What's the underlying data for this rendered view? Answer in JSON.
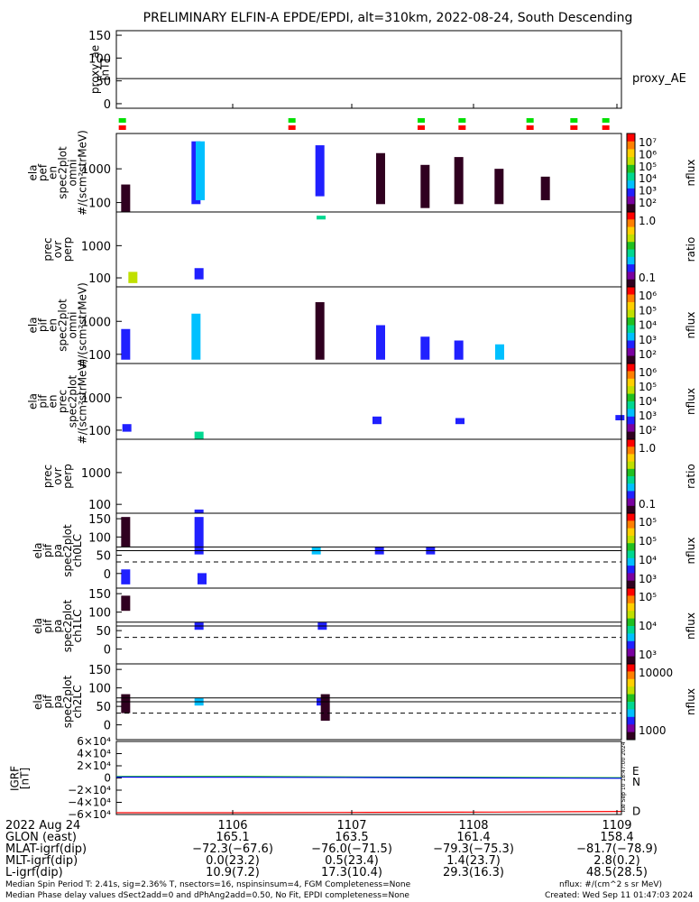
{
  "title": "PRELIMINARY ELFIN-A EPDE/EPDI, alt=310km, 2022-08-24, South Descending",
  "colors": {
    "cbar_sub": [
      "#7a00a0",
      "#2020ff",
      "#00c0ff",
      "#00d890",
      "#20c020",
      "#c0e000",
      "#ffd000",
      "#ff8000",
      "#ff0000"
    ]
  },
  "chart_data": {
    "type": "heatmap",
    "time_axis": {
      "ticks": [
        "1106",
        "1107",
        "1108",
        "1109"
      ]
    },
    "ae_panel": {
      "ylabel": [
        "proxy_ae",
        "[nT]"
      ],
      "yticks": [
        "150",
        "100",
        "50",
        "0"
      ],
      "ylim": [
        -10,
        160
      ],
      "value": 55,
      "legend": "proxy_AE"
    },
    "spin_markers": {
      "green_columns": [
        0.4,
        28.6,
        50.1,
        56.9,
        68.2,
        75.5,
        80.8
      ],
      "red_columns": [
        0.4,
        28.6,
        50.1,
        56.9,
        68.2,
        75.5,
        80.8
      ]
    },
    "panels": [
      {
        "ylabel": [
          "ela",
          "pef",
          "en",
          "spec2plot",
          "omni",
          "#/(scm²strMeV)"
        ],
        "yticks": [
          "1000",
          "100"
        ],
        "colorbar": {
          "labels": [
            "10⁷",
            "10⁶",
            "10⁵",
            "10⁴",
            "10³",
            "10²"
          ],
          "unit": "nflux"
        },
        "blocks": [
          {
            "t": 0.8,
            "e": [
              0.0,
              0.35
            ],
            "c": 0
          },
          {
            "t": 12.5,
            "e": [
              0.1,
              0.9
            ],
            "c": 1
          },
          {
            "t": 13.2,
            "e": [
              0.15,
              0.9
            ],
            "c": 2
          },
          {
            "t": 33.1,
            "e": [
              0.2,
              0.85
            ],
            "c": 1
          },
          {
            "t": 43.2,
            "e": [
              0.1,
              0.75
            ],
            "c": 0
          },
          {
            "t": 50.6,
            "e": [
              0.05,
              0.6
            ],
            "c": 0
          },
          {
            "t": 56.2,
            "e": [
              0.1,
              0.7
            ],
            "c": 0
          },
          {
            "t": 62.9,
            "e": [
              0.1,
              0.55
            ],
            "c": 0
          },
          {
            "t": 70.6,
            "e": [
              0.15,
              0.45
            ],
            "c": 0
          }
        ]
      },
      {
        "ylabel": [
          "prec",
          "ovr",
          "perp"
        ],
        "yticks": [
          "1000",
          "100"
        ],
        "colorbar": {
          "labels": [
            "1.0",
            "0.1"
          ],
          "unit": "ratio"
        },
        "blocks": [
          {
            "t": 2.0,
            "e": [
              0.05,
              0.2
            ],
            "c": 5
          },
          {
            "t": 13.0,
            "e": [
              0.1,
              0.25
            ],
            "c": 1
          },
          {
            "t": 33.3,
            "e": [
              0.9,
              0.95
            ],
            "c": 3
          }
        ]
      },
      {
        "ylabel": [
          "ela",
          "pif",
          "en",
          "spec2plot",
          "omni",
          "#/(scm²strMeV)"
        ],
        "yticks": [
          "1000",
          "100"
        ],
        "colorbar": {
          "labels": [
            "10⁶",
            "10⁵",
            "10⁴",
            "10³",
            "10²"
          ],
          "unit": "nflux"
        },
        "blocks": [
          {
            "t": 0.8,
            "e": [
              0.05,
              0.45
            ],
            "c": 1
          },
          {
            "t": 12.5,
            "e": [
              0.05,
              0.65
            ],
            "c": 2
          },
          {
            "t": 33.1,
            "e": [
              0.05,
              0.8
            ],
            "c": 0
          },
          {
            "t": 43.2,
            "e": [
              0.05,
              0.5
            ],
            "c": 1
          },
          {
            "t": 50.6,
            "e": [
              0.05,
              0.35
            ],
            "c": 1
          },
          {
            "t": 56.2,
            "e": [
              0.05,
              0.3
            ],
            "c": 1
          },
          {
            "t": 63.0,
            "e": [
              0.05,
              0.25
            ],
            "c": 2
          }
        ]
      },
      {
        "ylabel": [
          "ela",
          "pif",
          "en",
          "prec",
          "spec2plot",
          "#/(scm²strMeV)"
        ],
        "yticks": [
          "1000",
          "100"
        ],
        "colorbar": {
          "labels": [
            "10⁶",
            "10⁵",
            "10⁴",
            "10³",
            "10²"
          ],
          "unit": "nflux"
        },
        "blocks": [
          {
            "t": 1.0,
            "e": [
              0.1,
              0.2
            ],
            "c": 1
          },
          {
            "t": 13.0,
            "e": [
              0.0,
              0.1
            ],
            "c": 3
          },
          {
            "t": 42.6,
            "e": [
              0.2,
              0.3
            ],
            "c": 1
          },
          {
            "t": 56.4,
            "e": [
              0.2,
              0.28
            ],
            "c": 1
          },
          {
            "t": 83.0,
            "e": [
              0.25,
              0.32
            ],
            "c": 1
          }
        ]
      },
      {
        "ylabel": [
          "prec",
          "ovr",
          "perp"
        ],
        "yticks": [
          "1000",
          "100"
        ],
        "colorbar": {
          "labels": [
            "1.0",
            "0.1"
          ],
          "unit": "ratio"
        },
        "blocks": [
          {
            "t": 13.0,
            "e": [
              0.0,
              0.05
            ],
            "c": 1
          }
        ]
      },
      {
        "ylabel": [
          "ela",
          "pif",
          "pa",
          "spec2plot",
          "ch0LC"
        ],
        "yticks": [
          "150",
          "100",
          "50",
          "0"
        ],
        "colorbar": {
          "labels": [
            "10⁵",
            "10⁵",
            "10⁴",
            "10³"
          ],
          "unit": "nflux"
        },
        "blocks": [
          {
            "t": 0.8,
            "e": [
              0.55,
              0.95
            ],
            "c": 0
          },
          {
            "t": 0.8,
            "e": [
              0.05,
              0.25
            ],
            "c": 1
          },
          {
            "t": 13.0,
            "e": [
              0.45,
              0.95
            ],
            "c": 1
          },
          {
            "t": 13.5,
            "e": [
              0.05,
              0.2
            ],
            "c": 1
          },
          {
            "t": 32.5,
            "e": [
              0.45,
              0.55
            ],
            "c": 2
          },
          {
            "t": 43.0,
            "e": [
              0.45,
              0.55
            ],
            "c": 1
          },
          {
            "t": 51.5,
            "e": [
              0.45,
              0.55
            ],
            "c": 1
          }
        ]
      },
      {
        "ylabel": [
          "ela",
          "pif",
          "pa",
          "spec2plot",
          "ch1LC"
        ],
        "yticks": [
          "150",
          "100",
          "50",
          "0"
        ],
        "colorbar": {
          "labels": [
            "10⁵",
            "10⁴",
            "10³"
          ],
          "unit": "nflux"
        },
        "blocks": [
          {
            "t": 0.8,
            "e": [
              0.7,
              0.9
            ],
            "c": 0
          },
          {
            "t": 13.0,
            "e": [
              0.45,
              0.55
            ],
            "c": 1
          },
          {
            "t": 33.5,
            "e": [
              0.45,
              0.55
            ],
            "c": 1
          }
        ]
      },
      {
        "ylabel": [
          "ela",
          "pif",
          "pa",
          "spec2plot",
          "ch2LC"
        ],
        "yticks": [
          "150",
          "100",
          "50",
          "0"
        ],
        "colorbar": {
          "labels": [
            "10000",
            "1000"
          ],
          "unit": "nflux"
        },
        "blocks": [
          {
            "t": 0.8,
            "e": [
              0.35,
              0.6
            ],
            "c": 0
          },
          {
            "t": 13.0,
            "e": [
              0.45,
              0.55
            ],
            "c": 2
          },
          {
            "t": 33.3,
            "e": [
              0.45,
              0.55
            ],
            "c": 1
          },
          {
            "t": 34.0,
            "e": [
              0.25,
              0.6
            ],
            "c": 0
          }
        ]
      }
    ],
    "igrf_panel": {
      "ylabel": [
        "IGRF",
        "[nT]"
      ],
      "yticks": [
        "6×10⁴",
        "4×10⁴",
        "2×10⁴",
        "0",
        "−2×10⁴",
        "−4×10⁴",
        "−6×10⁴"
      ],
      "ylim": [
        -60000,
        60000
      ],
      "series": [
        {
          "name": "E",
          "color": "#00c000",
          "values": [
            2500,
            2500,
            1500,
            1000,
            500
          ]
        },
        {
          "name": "N",
          "color": "#0000ff",
          "values": [
            1500,
            1200,
            800,
            0,
            -500
          ]
        },
        {
          "name": "D",
          "color": "#ff0000",
          "values": [
            -57000,
            -57000,
            -56500,
            -56000,
            -55000
          ]
        }
      ],
      "sidebar_label": "Tue Sep 10 18:47:00 2024"
    },
    "x_rows": [
      {
        "label": "2022 Aug 24",
        "values": [
          "1106",
          "1107",
          "1108",
          "1109"
        ]
      },
      {
        "label": "GLON (east)",
        "values": [
          "165.1",
          "163.5",
          "161.4",
          "158.4"
        ]
      },
      {
        "label": "MLAT-igrf(dip)",
        "values": [
          "−72.3(−67.6)",
          "−76.0(−71.5)",
          "−79.3(−75.3)",
          "−81.7(−78.9)"
        ]
      },
      {
        "label": "MLT-igrf(dip)",
        "values": [
          "0.0(23.2)",
          "0.5(23.4)",
          "1.4(23.7)",
          "2.8(0.2)"
        ]
      },
      {
        "label": "L-igrf(dip)",
        "values": [
          "10.9(7.2)",
          "17.3(10.4)",
          "29.3(16.3)",
          "48.5(28.5)"
        ]
      }
    ],
    "footer": {
      "line1": "Median Spin Period T: 2.41s, sig=2.36% T, nsectors=16, nspinsinsum=4, FGM Completeness=None",
      "line2": "Median Phase delay values dSect2add=0 and dPhAng2add=0.50, No Fit, EPDI completeness=None",
      "right1": "nflux: #/(cm^2 s sr MeV)",
      "right2": "Created: Wed Sep 11 01:47:03 2024"
    }
  }
}
